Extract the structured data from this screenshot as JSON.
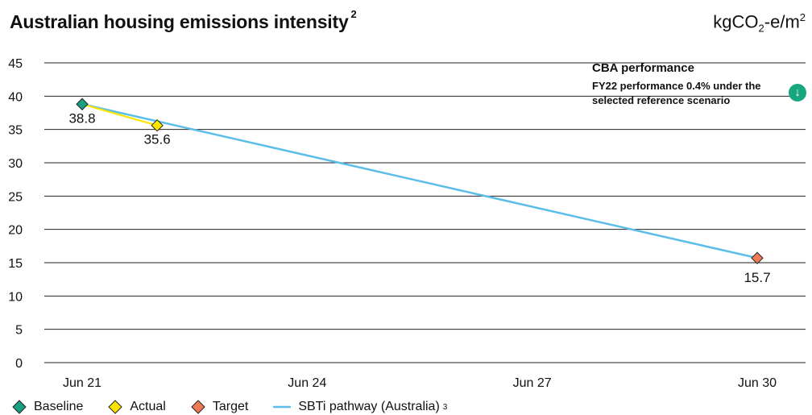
{
  "title": "Australian housing emissions intensity",
  "title_footnote": "2",
  "unit": {
    "base": "kgCO",
    "sub": "2",
    "mid": "-e/m",
    "sup": "2"
  },
  "performance": {
    "heading": "CBA performance",
    "text": "FY22 performance 0.4% under the selected reference scenario",
    "icon": "arrow-down-icon"
  },
  "legend": [
    {
      "label": "Baseline",
      "color": "#1a9f82",
      "marker": "diamond"
    },
    {
      "label": "Actual",
      "color": "#fde500",
      "marker": "diamond"
    },
    {
      "label": "Target",
      "color": "#f07a55",
      "marker": "diamond"
    },
    {
      "label": "SBTi pathway (Australia)",
      "footnote": "3",
      "color": "#5bbde8",
      "marker": "line"
    }
  ],
  "chart_data": {
    "type": "line",
    "xlim": [
      2021,
      2030
    ],
    "ylim": [
      0,
      45
    ],
    "yticks": [
      0,
      5,
      10,
      15,
      20,
      25,
      30,
      35,
      40,
      45
    ],
    "xticks": [
      {
        "value": 2021,
        "label": "Jun 21"
      },
      {
        "value": 2024,
        "label": "Jun 24"
      },
      {
        "value": 2027,
        "label": "Jun 27"
      },
      {
        "value": 2030,
        "label": "Jun 30"
      }
    ],
    "grid": true,
    "series": [
      {
        "name": "SBTi pathway (Australia)",
        "color": "#5bbde8",
        "x": [
          2021,
          2030
        ],
        "y": [
          38.8,
          15.7
        ]
      },
      {
        "name": "Actual",
        "color": "#fde500",
        "x": [
          2021,
          2022
        ],
        "y": [
          38.8,
          35.6
        ]
      }
    ],
    "points": [
      {
        "name": "Baseline",
        "x": 2021,
        "y": 38.8,
        "color": "#1a9f82",
        "label": "38.8"
      },
      {
        "name": "Actual",
        "x": 2022,
        "y": 35.6,
        "color": "#fde500",
        "label": "35.6"
      },
      {
        "name": "Target",
        "x": 2030,
        "y": 15.7,
        "color": "#f07a55",
        "label": "15.7"
      }
    ]
  }
}
